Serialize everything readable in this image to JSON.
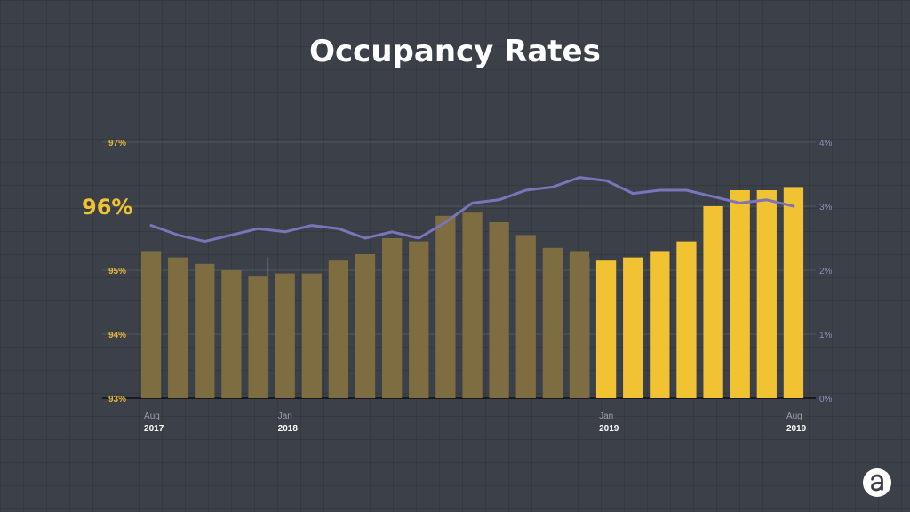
{
  "slide": {
    "title": "Occupancy Rates",
    "logo_icon": "a-logo-icon"
  },
  "colors": {
    "background": "#3b4049",
    "bar_past": "#7d6d41",
    "bar_current": "#f1c232",
    "line": "#7b74b8",
    "left_axis_text": "#e8b83c",
    "right_axis_text": "#8c8fb8"
  },
  "chart_data": {
    "type": "bar",
    "title": "Occupancy Rates",
    "left_axis": {
      "range": [
        93,
        97
      ],
      "ticks": [
        "93%",
        "94%",
        "95%",
        "96%",
        "97%"
      ],
      "emphasized_tick": "96%"
    },
    "right_axis": {
      "range": [
        0,
        4
      ],
      "ticks": [
        "0%",
        "1%",
        "2%",
        "3%",
        "4%"
      ]
    },
    "x_labels": [
      {
        "index": 0,
        "month": "Aug",
        "year": "2017"
      },
      {
        "index": 5,
        "month": "Jan",
        "year": "2018"
      },
      {
        "index": 17,
        "month": "Jan",
        "year": "2019"
      },
      {
        "index": 24,
        "month": "Aug",
        "year": "2019"
      }
    ],
    "series": [
      {
        "type": "bar",
        "axis": "left",
        "values": [
          95.3,
          95.2,
          95.1,
          95.0,
          94.9,
          94.95,
          94.95,
          95.15,
          95.25,
          95.5,
          95.45,
          95.85,
          95.9,
          95.75,
          95.55,
          95.35,
          95.3,
          95.15,
          95.2,
          95.3,
          95.45,
          96.0,
          96.25,
          96.25,
          96.3
        ],
        "highlight_from_index": 17
      },
      {
        "type": "line",
        "axis": "right",
        "values": [
          2.7,
          2.55,
          2.45,
          2.55,
          2.65,
          2.6,
          2.7,
          2.65,
          2.5,
          2.6,
          2.5,
          2.75,
          3.05,
          3.1,
          3.25,
          3.3,
          3.45,
          3.4,
          3.2,
          3.25,
          3.25,
          3.15,
          3.05,
          3.1,
          3.0
        ]
      }
    ],
    "grid": true,
    "legend": "none"
  }
}
